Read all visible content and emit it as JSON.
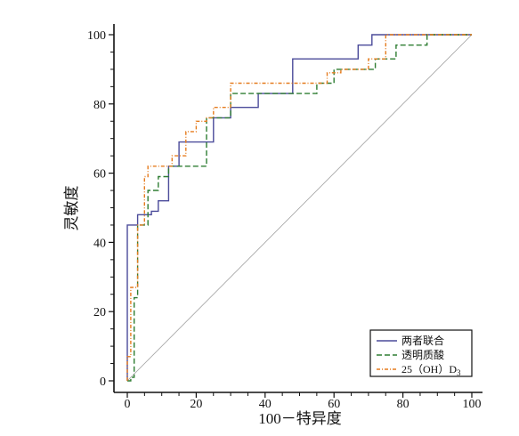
{
  "chart_data": {
    "type": "line",
    "xlabel": "100－特异度",
    "ylabel": "灵敏度",
    "xlim": [
      0,
      100
    ],
    "ylim": [
      0,
      100
    ],
    "x_ticks": [
      "0",
      "20",
      "40",
      "60",
      "80",
      "100"
    ],
    "y_ticks": [
      "0",
      "20",
      "40",
      "60",
      "80",
      "100"
    ],
    "grid": false,
    "legend_position": "bottom-right",
    "reference_line": {
      "x": [
        0,
        100
      ],
      "y": [
        0,
        100
      ],
      "color": "#a0a0a0"
    },
    "series": [
      {
        "name": "两者联合",
        "color": "#4b4b9a",
        "dash": "solid",
        "x": [
          0,
          0,
          3,
          3,
          7,
          7,
          9,
          9,
          12,
          12,
          15,
          15,
          19,
          19,
          25,
          25,
          30,
          30,
          38,
          38,
          48,
          48,
          62,
          62,
          67,
          67,
          71,
          71,
          82,
          82,
          100
        ],
        "y": [
          0,
          45,
          45,
          48,
          48,
          49,
          49,
          52,
          52,
          62,
          62,
          69,
          69,
          69,
          69,
          76,
          76,
          79,
          79,
          83,
          83,
          93,
          93,
          93,
          93,
          97,
          97,
          100,
          100,
          100,
          100
        ]
      },
      {
        "name": "透明质酸",
        "color": "#2e7d32",
        "dash": "6,3",
        "x": [
          0,
          1,
          1,
          2,
          2,
          3,
          3,
          6,
          6,
          9,
          9,
          12,
          12,
          18,
          18,
          23,
          23,
          30,
          30,
          48,
          48,
          55,
          55,
          60,
          60,
          72,
          72,
          78,
          78,
          87,
          87,
          100
        ],
        "y": [
          0,
          0,
          1,
          1,
          24,
          24,
          45,
          45,
          55,
          55,
          59,
          59,
          62,
          62,
          62,
          62,
          76,
          76,
          83,
          83,
          83,
          83,
          86,
          86,
          90,
          90,
          93,
          93,
          97,
          97,
          100,
          100
        ]
      },
      {
        "name": "25（OH）D",
        "name_sub": "3",
        "color": "#e57c1f",
        "dash": "4,2,1,2",
        "x": [
          0,
          0,
          1,
          1,
          3,
          3,
          5,
          5,
          6,
          6,
          10,
          10,
          13,
          13,
          17,
          17,
          20,
          20,
          23,
          23,
          25,
          25,
          30,
          30,
          55,
          55,
          58,
          58,
          62,
          62,
          70,
          70,
          75,
          75,
          100
        ],
        "y": [
          0,
          7,
          7,
          27,
          27,
          45,
          45,
          59,
          59,
          62,
          62,
          62,
          62,
          65,
          65,
          72,
          72,
          75,
          75,
          76,
          76,
          79,
          79,
          86,
          86,
          86,
          86,
          89,
          89,
          90,
          90,
          93,
          93,
          100,
          100
        ]
      }
    ]
  }
}
